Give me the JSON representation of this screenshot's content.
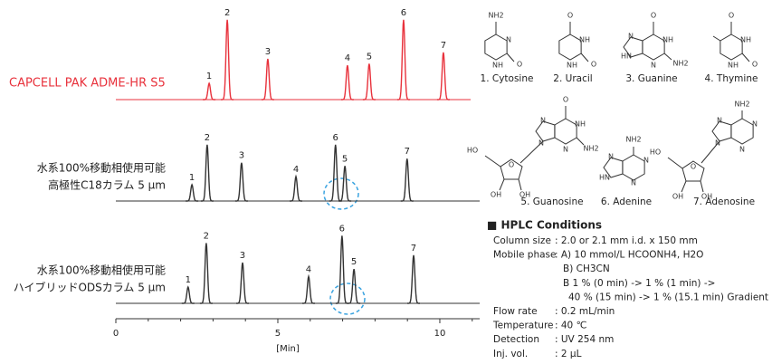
{
  "chart_data": {
    "type": "chromatogram",
    "xlabel": "[Min]",
    "xlim": [
      0,
      11.23
    ],
    "xticks": [
      0,
      5,
      10
    ],
    "xminorticks": [
      1,
      2,
      3,
      4,
      6,
      7,
      8,
      9,
      11
    ],
    "ylim": [
      0,
      100
    ],
    "series": [
      {
        "name": [
          "CAPCELL PAK ADME-HR S5"
        ],
        "color": "#e8323c",
        "labels": [
          "1",
          "2",
          "3",
          "4",
          "5",
          "6",
          "7"
        ],
        "x": [
          2.88,
          3.44,
          4.69,
          7.15,
          7.82,
          8.88,
          10.11
        ],
        "values": [
          20,
          98,
          50,
          42,
          44,
          98,
          58
        ]
      },
      {
        "name": [
          "水系100%移動相使用可能",
          "高極性C18カラム 5 μm"
        ],
        "color": "#333333",
        "labels": [
          "1",
          "2",
          "3",
          "4",
          "5",
          "6",
          "7"
        ],
        "x": [
          2.35,
          2.82,
          3.88,
          5.56,
          7.07,
          6.78,
          8.99
        ],
        "values": [
          20,
          69,
          47,
          30,
          43,
          69,
          52
        ]
      },
      {
        "name": [
          "水系100%移動相使用可能",
          "ハイブリッドODSカラム 5 μm"
        ],
        "color": "#333333",
        "labels": [
          "1",
          "2",
          "3",
          "4",
          "5",
          "6",
          "7"
        ],
        "x": [
          2.23,
          2.79,
          3.91,
          5.95,
          7.35,
          6.98,
          9.19
        ],
        "values": [
          20,
          74,
          50,
          33,
          42,
          83,
          59
        ]
      }
    ]
  },
  "structures": [
    {
      "name": "1. Cytosine",
      "atoms": [
        "NH2",
        "N",
        "O",
        "NH"
      ]
    },
    {
      "name": "2. Uracil",
      "atoms": [
        "O",
        "NH",
        "O",
        "NH"
      ]
    },
    {
      "name": "3. Guanine",
      "atoms": [
        "O",
        "NH",
        "NH2",
        "N",
        "N",
        "HN"
      ]
    },
    {
      "name": "4. Thymine",
      "atoms": [
        "O",
        "NH",
        "O",
        "NH"
      ]
    },
    {
      "name": "5. Guanosine",
      "atoms": [
        "O",
        "NH",
        "NH2",
        "N",
        "N",
        "N",
        "O",
        "HO",
        "OH",
        "OH"
      ]
    },
    {
      "name": "6. Adenine",
      "atoms": [
        "NH2",
        "N",
        "N",
        "N",
        "HN"
      ]
    },
    {
      "name": "7. Adenosine",
      "atoms": [
        "NH2",
        "N",
        "N",
        "N",
        "N",
        "O",
        "HO",
        "OH",
        "OH"
      ]
    }
  ],
  "conditions": {
    "title": "■ HPLC Conditions",
    "rows": [
      {
        "label": "Column size",
        "lines": [
          ": 2.0 or 2.1 mm i.d. x 150 mm"
        ]
      },
      {
        "label": "Mobile phase",
        "lines": [
          ": A) 10 mmol/L HCOONH4, H2O",
          "B) CH3CN",
          "B 1 % (0 min) -> 1 % (1 min) ->",
          "40 % (15 min) -> 1 % (15.1 min) Gradient"
        ]
      },
      {
        "label": "Flow rate",
        "lines": [
          ": 0.2 mL/min"
        ]
      },
      {
        "label": "Temperature",
        "lines": [
          ": 40 ℃"
        ]
      },
      {
        "label": "Detection",
        "lines": [
          ": UV 254 nm"
        ]
      },
      {
        "label": "Inj. vol.",
        "lines": [
          ": 2 μL"
        ]
      }
    ]
  }
}
